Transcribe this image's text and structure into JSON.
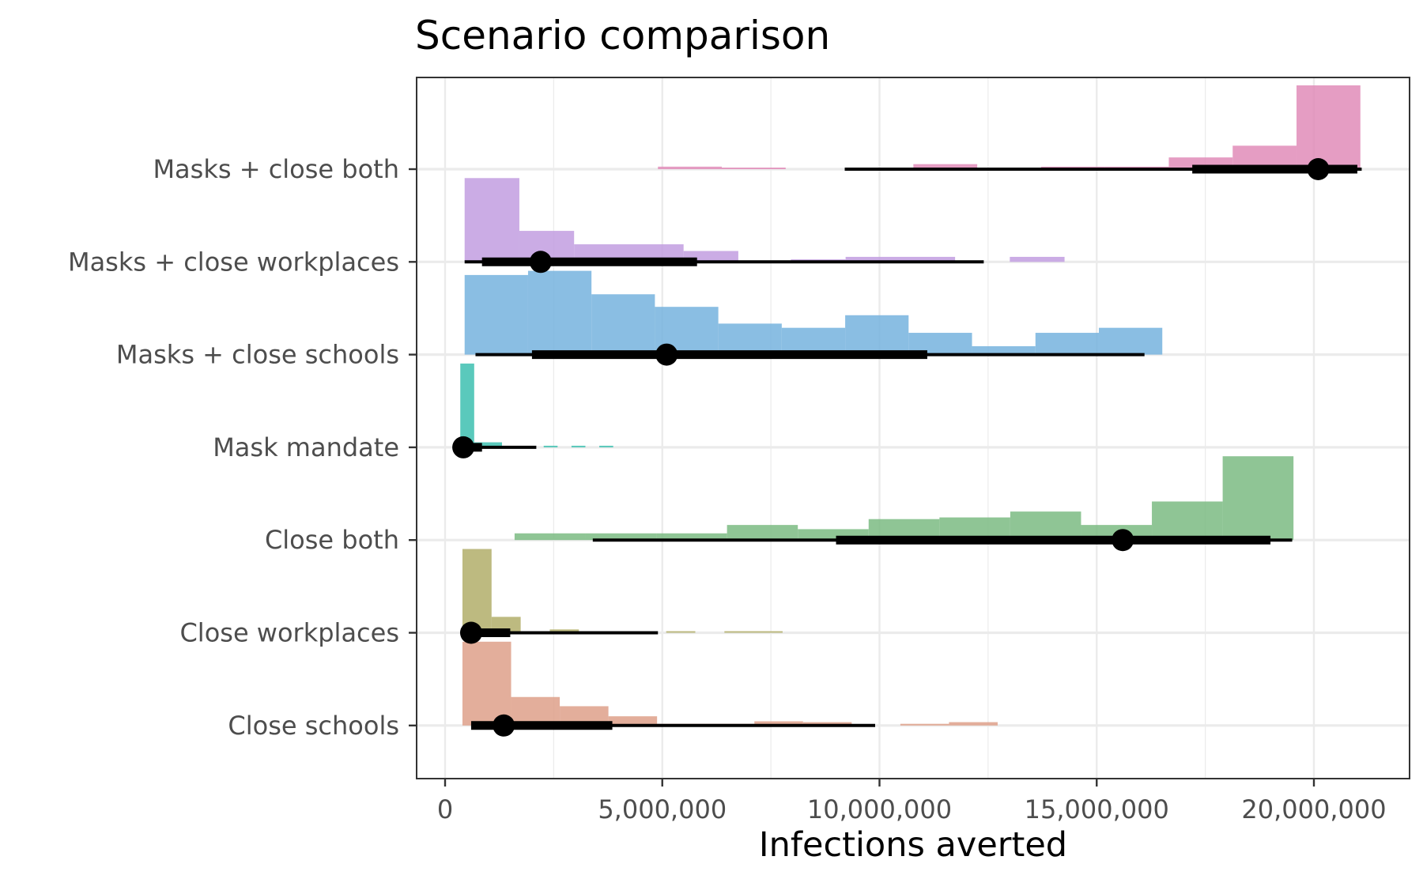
{
  "chart_data": {
    "type": "histogram-interval",
    "title": "Scenario comparison",
    "xlabel": "Infections averted",
    "ylabel": "",
    "xlim": [
      -700000,
      22000000
    ],
    "x_ticks": [
      0,
      5000000,
      10000000,
      15000000,
      20000000
    ],
    "x_tick_labels": [
      "0",
      "5,000,000",
      "10,000,000",
      "15,000,000",
      "20,000,000"
    ],
    "grid": true,
    "legend": "none",
    "categories": [
      "Masks + close both",
      "Masks + close workplaces",
      "Masks + close schools",
      "Mask mandate",
      "Close both",
      "Close workplaces",
      "Close schools"
    ],
    "series": [
      {
        "name": "Masks + close both",
        "color": "#e08cb8",
        "bins": [
          [
            4900000,
            6370000,
            0.03
          ],
          [
            6370000,
            7840000,
            0.01
          ],
          [
            10780000,
            12250000,
            0.06
          ],
          [
            13720000,
            15190000,
            0.03
          ],
          [
            15190000,
            16660000,
            0.03
          ],
          [
            16660000,
            18130000,
            0.14
          ],
          [
            18130000,
            19600000,
            0.28
          ],
          [
            19600000,
            21070000,
            1.0
          ]
        ],
        "point": 20100000,
        "interval_inner": [
          17200000,
          21000000
        ],
        "interval_outer": [
          9200000,
          21100000
        ]
      },
      {
        "name": "Masks + close workplaces",
        "color": "#c29de0",
        "bins": [
          [
            450000,
            1710000,
            1.0
          ],
          [
            1710000,
            2970000,
            0.37
          ],
          [
            2970000,
            5490000,
            0.21
          ],
          [
            5490000,
            6750000,
            0.13
          ],
          [
            7960000,
            9220000,
            0.03
          ],
          [
            9220000,
            11740000,
            0.06
          ],
          [
            13000000,
            14260000,
            0.06
          ]
        ],
        "point": 2200000,
        "interval_inner": [
          850000,
          5800000
        ],
        "interval_outer": [
          450000,
          12400000
        ]
      },
      {
        "name": "Masks + close schools",
        "color": "#76b3de",
        "bins": [
          [
            450000,
            1910000,
            0.95
          ],
          [
            1910000,
            3370000,
            1.0
          ],
          [
            3370000,
            4830000,
            0.72
          ],
          [
            4830000,
            6290000,
            0.57
          ],
          [
            6290000,
            7750000,
            0.37
          ],
          [
            7750000,
            9210000,
            0.32
          ],
          [
            9210000,
            10670000,
            0.47
          ],
          [
            10670000,
            12130000,
            0.26
          ],
          [
            12130000,
            13590000,
            0.1
          ],
          [
            13590000,
            15050000,
            0.26
          ],
          [
            15050000,
            16510000,
            0.32
          ]
        ],
        "point": 5100000,
        "interval_inner": [
          2000000,
          11100000
        ],
        "interval_outer": [
          700000,
          16100000
        ]
      },
      {
        "name": "Mask mandate",
        "color": "#3dbfb0",
        "bins": [
          [
            350000,
            670000,
            1.0
          ],
          [
            670000,
            1310000,
            0.06
          ],
          [
            2270000,
            2590000,
            0.01
          ],
          [
            2910000,
            3230000,
            0.01
          ],
          [
            3550000,
            3870000,
            0.01
          ]
        ],
        "point": 420000,
        "interval_inner": [
          350000,
          850000
        ],
        "interval_outer": [
          350000,
          2100000
        ]
      },
      {
        "name": "Close both",
        "color": "#7bbb82",
        "bins": [
          [
            1600000,
            3230000,
            0.08
          ],
          [
            3230000,
            4860000,
            0.08
          ],
          [
            4860000,
            6490000,
            0.08
          ],
          [
            6490000,
            8120000,
            0.18
          ],
          [
            8120000,
            9750000,
            0.13
          ],
          [
            9750000,
            11380000,
            0.25
          ],
          [
            11380000,
            13010000,
            0.27
          ],
          [
            13010000,
            14640000,
            0.34
          ],
          [
            14640000,
            16270000,
            0.18
          ],
          [
            16270000,
            17900000,
            0.46
          ],
          [
            17900000,
            19530000,
            1.0
          ]
        ],
        "point": 15600000,
        "interval_inner": [
          9000000,
          19000000
        ],
        "interval_outer": [
          3400000,
          19500000
        ]
      },
      {
        "name": "Close workplaces",
        "color": "#b2ae6a",
        "bins": [
          [
            400000,
            1070000,
            1.0
          ],
          [
            1070000,
            1740000,
            0.19
          ],
          [
            2410000,
            3080000,
            0.04
          ],
          [
            5090000,
            5760000,
            0.01
          ],
          [
            6430000,
            7770000,
            0.01
          ]
        ],
        "point": 600000,
        "interval_inner": [
          400000,
          1500000
        ],
        "interval_outer": [
          400000,
          4900000
        ]
      },
      {
        "name": "Close schools",
        "color": "#dea08a",
        "bins": [
          [
            400000,
            1520000,
            1.0
          ],
          [
            1520000,
            2640000,
            0.34
          ],
          [
            2640000,
            3760000,
            0.23
          ],
          [
            3760000,
            4880000,
            0.11
          ],
          [
            4880000,
            6000000,
            0.02
          ],
          [
            6000000,
            7120000,
            0.02
          ],
          [
            7120000,
            8240000,
            0.05
          ],
          [
            8240000,
            9360000,
            0.04
          ],
          [
            10480000,
            11600000,
            0.02
          ],
          [
            11600000,
            12720000,
            0.04
          ]
        ],
        "point": 1350000,
        "interval_inner": [
          600000,
          3850000
        ],
        "interval_outer": [
          600000,
          9900000
        ]
      }
    ]
  }
}
